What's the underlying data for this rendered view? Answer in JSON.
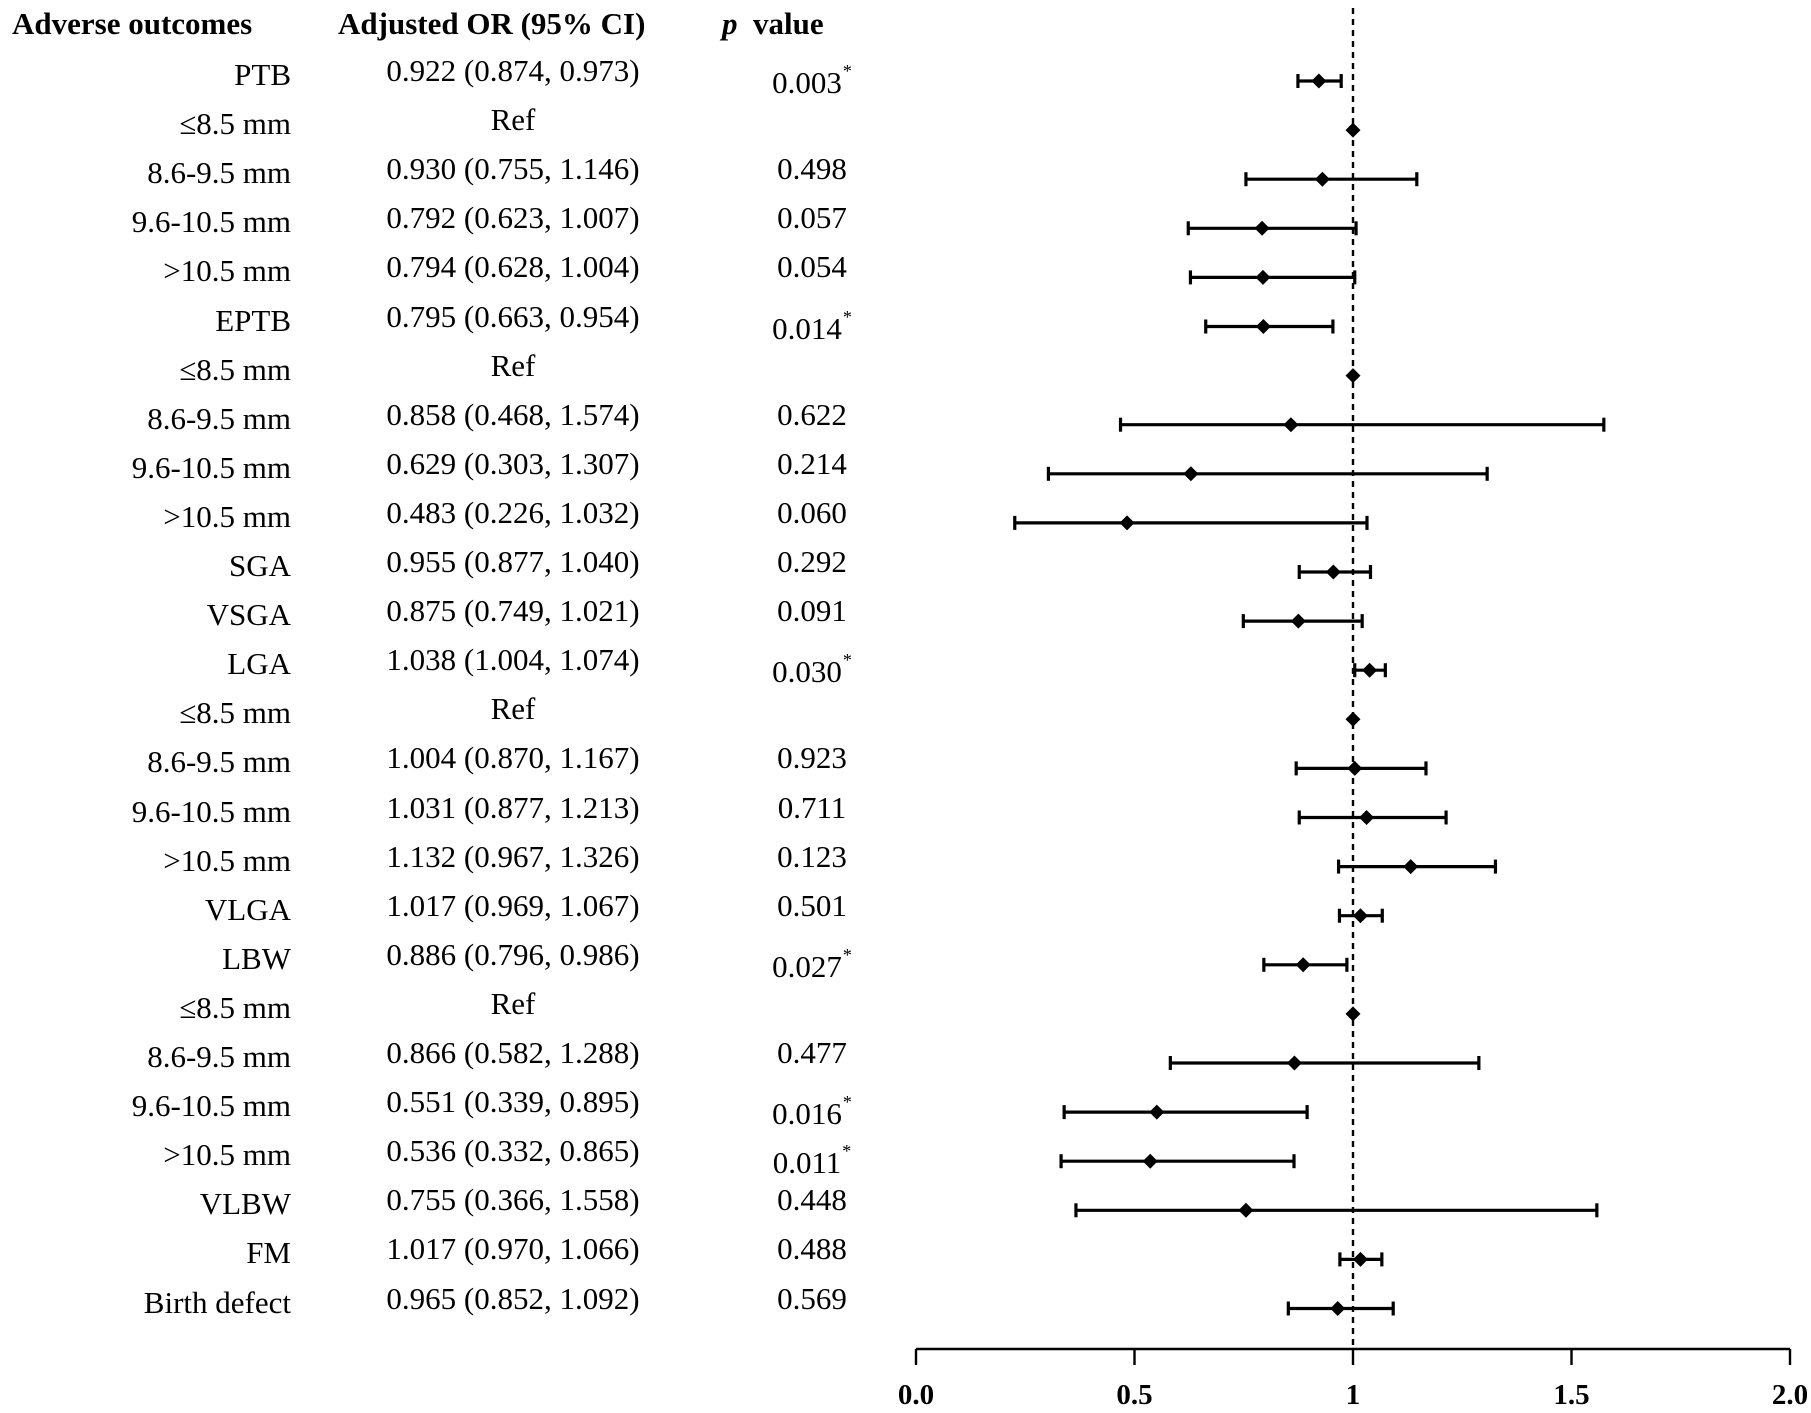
{
  "headers": {
    "outcome": "Adverse outcomes",
    "or": "Adjusted OR (95% CI)",
    "p_italic": "p",
    "p_rest": "value"
  },
  "colors": {
    "ink": "#000000",
    "background": "#ffffff"
  },
  "chart_data": {
    "type": "forest",
    "title": "",
    "xlabel": "",
    "xlim": [
      0.0,
      2.0
    ],
    "xticks": [
      "0.0",
      "0.5",
      "1",
      "1.5",
      "2.0"
    ],
    "xtick_values": [
      0.0,
      0.5,
      1.0,
      1.5,
      2.0
    ],
    "reference_line": 1.0,
    "rows": [
      {
        "label": "PTB",
        "or_text": "0.922 (0.874, 0.973)",
        "p_text": "0.003",
        "sig": true,
        "or": 0.922,
        "lo": 0.874,
        "hi": 0.973
      },
      {
        "label": "≤8.5 mm",
        "or_text": "Ref",
        "p_text": "",
        "sig": false,
        "or": 1.0,
        "lo": null,
        "hi": null
      },
      {
        "label": "8.6-9.5 mm",
        "or_text": "0.930 (0.755, 1.146)",
        "p_text": "0.498",
        "sig": false,
        "or": 0.93,
        "lo": 0.755,
        "hi": 1.146
      },
      {
        "label": "9.6-10.5 mm",
        "or_text": "0.792 (0.623, 1.007)",
        "p_text": "0.057",
        "sig": false,
        "or": 0.792,
        "lo": 0.623,
        "hi": 1.007
      },
      {
        "label": ">10.5 mm",
        "or_text": "0.794 (0.628, 1.004)",
        "p_text": "0.054",
        "sig": false,
        "or": 0.794,
        "lo": 0.628,
        "hi": 1.004
      },
      {
        "label": "EPTB",
        "or_text": "0.795 (0.663, 0.954)",
        "p_text": "0.014",
        "sig": true,
        "or": 0.795,
        "lo": 0.663,
        "hi": 0.954
      },
      {
        "label": "≤8.5 mm",
        "or_text": "Ref",
        "p_text": "",
        "sig": false,
        "or": 1.0,
        "lo": null,
        "hi": null
      },
      {
        "label": "8.6-9.5 mm",
        "or_text": "0.858 (0.468, 1.574)",
        "p_text": "0.622",
        "sig": false,
        "or": 0.858,
        "lo": 0.468,
        "hi": 1.574
      },
      {
        "label": "9.6-10.5 mm",
        "or_text": "0.629 (0.303, 1.307)",
        "p_text": "0.214",
        "sig": false,
        "or": 0.629,
        "lo": 0.303,
        "hi": 1.307
      },
      {
        "label": ">10.5 mm",
        "or_text": "0.483 (0.226, 1.032)",
        "p_text": "0.060",
        "sig": false,
        "or": 0.483,
        "lo": 0.226,
        "hi": 1.032
      },
      {
        "label": "SGA",
        "or_text": "0.955 (0.877, 1.040)",
        "p_text": "0.292",
        "sig": false,
        "or": 0.955,
        "lo": 0.877,
        "hi": 1.04
      },
      {
        "label": "VSGA",
        "or_text": "0.875 (0.749, 1.021)",
        "p_text": "0.091",
        "sig": false,
        "or": 0.875,
        "lo": 0.749,
        "hi": 1.021
      },
      {
        "label": "LGA",
        "or_text": "1.038 (1.004, 1.074)",
        "p_text": "0.030",
        "sig": true,
        "or": 1.038,
        "lo": 1.004,
        "hi": 1.074
      },
      {
        "label": "≤8.5 mm",
        "or_text": "Ref",
        "p_text": "",
        "sig": false,
        "or": 1.0,
        "lo": null,
        "hi": null
      },
      {
        "label": "8.6-9.5 mm",
        "or_text": "1.004 (0.870, 1.167)",
        "p_text": "0.923",
        "sig": false,
        "or": 1.004,
        "lo": 0.87,
        "hi": 1.167
      },
      {
        "label": "9.6-10.5 mm",
        "or_text": "1.031 (0.877, 1.213)",
        "p_text": "0.711",
        "sig": false,
        "or": 1.031,
        "lo": 0.877,
        "hi": 1.213
      },
      {
        "label": ">10.5 mm",
        "or_text": "1.132 (0.967, 1.326)",
        "p_text": "0.123",
        "sig": false,
        "or": 1.132,
        "lo": 0.967,
        "hi": 1.326
      },
      {
        "label": "VLGA",
        "or_text": "1.017 (0.969, 1.067)",
        "p_text": "0.501",
        "sig": false,
        "or": 1.017,
        "lo": 0.969,
        "hi": 1.067
      },
      {
        "label": "LBW",
        "or_text": "0.886 (0.796, 0.986)",
        "p_text": "0.027",
        "sig": true,
        "or": 0.886,
        "lo": 0.796,
        "hi": 0.986
      },
      {
        "label": "≤8.5 mm",
        "or_text": "Ref",
        "p_text": "",
        "sig": false,
        "or": 1.0,
        "lo": null,
        "hi": null
      },
      {
        "label": "8.6-9.5 mm",
        "or_text": "0.866 (0.582, 1.288)",
        "p_text": "0.477",
        "sig": false,
        "or": 0.866,
        "lo": 0.582,
        "hi": 1.288
      },
      {
        "label": "9.6-10.5 mm",
        "or_text": "0.551 (0.339, 0.895)",
        "p_text": "0.016",
        "sig": true,
        "or": 0.551,
        "lo": 0.339,
        "hi": 0.895
      },
      {
        "label": ">10.5 mm",
        "or_text": "0.536 (0.332, 0.865)",
        "p_text": "0.011",
        "sig": true,
        "or": 0.536,
        "lo": 0.332,
        "hi": 0.865
      },
      {
        "label": "VLBW",
        "or_text": "0.755 (0.366, 1.558)",
        "p_text": "0.448",
        "sig": false,
        "or": 0.755,
        "lo": 0.366,
        "hi": 1.558
      },
      {
        "label": "FM",
        "or_text": "1.017 (0.970, 1.066)",
        "p_text": "0.488",
        "sig": false,
        "or": 1.017,
        "lo": 0.97,
        "hi": 1.066
      },
      {
        "label": "Birth defect",
        "or_text": "0.965 (0.852, 1.092)",
        "p_text": "0.569",
        "sig": false,
        "or": 0.965,
        "lo": 0.852,
        "hi": 1.092
      }
    ]
  }
}
